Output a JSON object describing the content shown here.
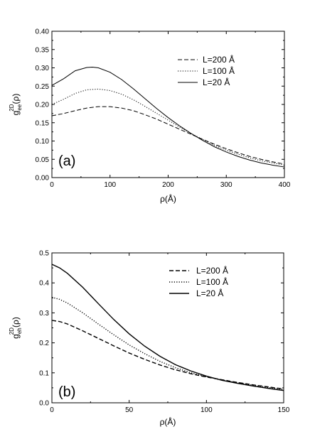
{
  "chart_data": [
    {
      "type": "line",
      "panel_label": "(a)",
      "xlabel": "ρ(Å)",
      "ylabel": {
        "main": "g",
        "sub": "ee",
        "sup": "2D",
        "tail": "(ρ)"
      },
      "xlim": [
        0,
        400
      ],
      "ylim": [
        0,
        0.4
      ],
      "x_ticks": [
        0,
        100,
        200,
        300,
        400
      ],
      "x_tick_labels": [
        "0",
        "100",
        "200",
        "300",
        "400"
      ],
      "y_ticks": [
        0,
        0.05,
        0.1,
        0.15,
        0.2,
        0.25,
        0.3,
        0.35,
        0.4
      ],
      "y_tick_labels": [
        "0.00",
        "0.05",
        "0.10",
        "0.15",
        "0.20",
        "0.25",
        "0.30",
        "0.35",
        "0.40"
      ],
      "grid": false,
      "legend_position": "top-right",
      "series": [
        {
          "name": "L=200 Å",
          "style": "dashed",
          "x": [
            0,
            20,
            40,
            60,
            80,
            100,
            120,
            140,
            160,
            180,
            200,
            220,
            240,
            260,
            280,
            300,
            320,
            340,
            360,
            380,
            400
          ],
          "y": [
            0.169,
            0.175,
            0.183,
            0.19,
            0.194,
            0.194,
            0.19,
            0.183,
            0.172,
            0.16,
            0.146,
            0.132,
            0.118,
            0.104,
            0.091,
            0.079,
            0.068,
            0.058,
            0.05,
            0.043,
            0.037
          ]
        },
        {
          "name": "L=100 Å",
          "style": "dotted",
          "x": [
            0,
            20,
            40,
            60,
            80,
            100,
            120,
            140,
            160,
            180,
            200,
            220,
            240,
            260,
            280,
            300,
            320,
            340,
            360,
            380,
            400
          ],
          "y": [
            0.2,
            0.214,
            0.23,
            0.24,
            0.242,
            0.238,
            0.228,
            0.213,
            0.195,
            0.176,
            0.157,
            0.138,
            0.12,
            0.104,
            0.088,
            0.075,
            0.064,
            0.054,
            0.046,
            0.04,
            0.034
          ]
        },
        {
          "name": "L=20 Å",
          "style": "solid",
          "x": [
            0,
            20,
            40,
            60,
            70,
            80,
            100,
            120,
            140,
            160,
            180,
            200,
            220,
            240,
            260,
            280,
            300,
            320,
            340,
            360,
            380,
            400
          ],
          "y": [
            0.252,
            0.27,
            0.292,
            0.301,
            0.302,
            0.3,
            0.288,
            0.268,
            0.243,
            0.216,
            0.189,
            0.164,
            0.141,
            0.12,
            0.101,
            0.084,
            0.07,
            0.058,
            0.048,
            0.04,
            0.034,
            0.029
          ]
        }
      ]
    },
    {
      "type": "line",
      "panel_label": "(b)",
      "xlabel": "ρ(Å)",
      "ylabel": {
        "main": "g",
        "sub": "eh",
        "sup": "2D",
        "tail": "(ρ)"
      },
      "xlim": [
        0,
        150
      ],
      "ylim": [
        0,
        0.5
      ],
      "x_ticks": [
        0,
        50,
        100,
        150
      ],
      "x_tick_labels": [
        "0",
        "50",
        "100",
        "150"
      ],
      "y_ticks": [
        0,
        0.1,
        0.2,
        0.3,
        0.4,
        0.5
      ],
      "y_tick_labels": [
        "0.0",
        "0.1",
        "0.2",
        "0.3",
        "0.4",
        "0.5"
      ],
      "grid": false,
      "legend_position": "top-right",
      "series": [
        {
          "name": "L=200 Å",
          "style": "dashed",
          "x": [
            0,
            5,
            10,
            20,
            30,
            40,
            50,
            60,
            70,
            80,
            90,
            100,
            110,
            120,
            130,
            140,
            150
          ],
          "y": [
            0.275,
            0.271,
            0.263,
            0.24,
            0.215,
            0.19,
            0.166,
            0.145,
            0.126,
            0.11,
            0.097,
            0.086,
            0.077,
            0.068,
            0.06,
            0.053,
            0.046
          ]
        },
        {
          "name": "L=100 Å",
          "style": "dotted",
          "x": [
            0,
            5,
            10,
            20,
            30,
            40,
            50,
            60,
            70,
            80,
            90,
            100,
            110,
            120,
            130,
            140,
            150
          ],
          "y": [
            0.352,
            0.345,
            0.333,
            0.3,
            0.263,
            0.227,
            0.193,
            0.164,
            0.138,
            0.117,
            0.1,
            0.087,
            0.076,
            0.067,
            0.059,
            0.051,
            0.044
          ]
        },
        {
          "name": "L=20 Å",
          "style": "solid",
          "x": [
            0,
            5,
            10,
            20,
            30,
            40,
            50,
            60,
            70,
            80,
            90,
            100,
            110,
            120,
            130,
            140,
            150
          ],
          "y": [
            0.462,
            0.45,
            0.432,
            0.385,
            0.331,
            0.278,
            0.23,
            0.189,
            0.155,
            0.127,
            0.106,
            0.089,
            0.075,
            0.065,
            0.056,
            0.048,
            0.041
          ]
        }
      ]
    }
  ]
}
